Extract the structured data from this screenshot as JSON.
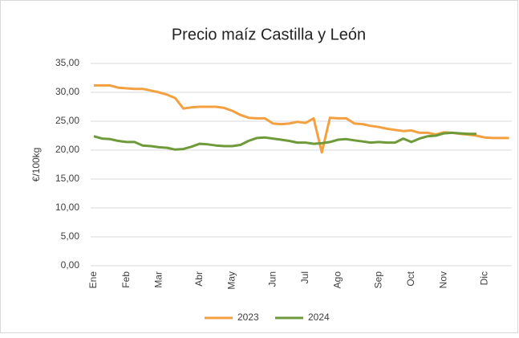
{
  "chart_data": {
    "type": "line",
    "title": "Precio maíz Castilla y León",
    "y_label": "€/100kg",
    "categories": [
      "Ene",
      null,
      null,
      null,
      "Feb",
      null,
      null,
      null,
      "Mar",
      null,
      null,
      null,
      null,
      "Abr",
      null,
      null,
      null,
      "May",
      null,
      null,
      null,
      null,
      "Jun",
      null,
      null,
      null,
      "Jul",
      null,
      null,
      null,
      "Ago",
      null,
      null,
      null,
      null,
      "Sep",
      null,
      null,
      null,
      "Oct",
      null,
      null,
      null,
      "Nov",
      null,
      null,
      null,
      null,
      "Dic",
      null,
      null,
      null
    ],
    "series": [
      {
        "name": "2023",
        "color": "#f4a040",
        "values": [
          31.2,
          31.2,
          31.2,
          30.8,
          30.7,
          30.6,
          30.6,
          30.3,
          30.0,
          29.6,
          29.0,
          27.2,
          27.4,
          27.5,
          27.5,
          27.5,
          27.3,
          26.8,
          26.1,
          25.6,
          25.5,
          25.5,
          24.6,
          24.5,
          24.6,
          24.9,
          24.7,
          25.5,
          19.6,
          25.6,
          25.5,
          25.5,
          24.6,
          24.5,
          24.2,
          24.0,
          23.7,
          23.5,
          23.3,
          23.4,
          23.0,
          23.0,
          22.7,
          23.1,
          23.0,
          22.8,
          22.7,
          22.5,
          22.2,
          22.1,
          22.1,
          22.1
        ]
      },
      {
        "name": "2024",
        "color": "#6e9a3a",
        "values": [
          22.4,
          22.0,
          21.9,
          21.6,
          21.4,
          21.4,
          20.8,
          20.7,
          20.5,
          20.4,
          20.1,
          20.2,
          20.6,
          21.1,
          21.0,
          20.8,
          20.7,
          20.7,
          20.9,
          21.6,
          22.1,
          22.2,
          22.0,
          21.8,
          21.6,
          21.3,
          21.3,
          21.1,
          21.2,
          21.4,
          21.8,
          21.9,
          21.7,
          21.5,
          21.3,
          21.4,
          21.3,
          21.3,
          22.0,
          21.4,
          22.0,
          22.4,
          22.5,
          22.9,
          23.0,
          22.9,
          22.8,
          22.8,
          null,
          null,
          null,
          null
        ]
      }
    ],
    "ylim": [
      0,
      35
    ],
    "yticks": [
      {
        "value": 0,
        "label": "0,00"
      },
      {
        "value": 5,
        "label": "5,00"
      },
      {
        "value": 10,
        "label": "10,00"
      },
      {
        "value": 15,
        "label": "15,00"
      },
      {
        "value": 20,
        "label": "20,00"
      },
      {
        "value": 25,
        "label": "25,00"
      },
      {
        "value": 30,
        "label": "30,00"
      },
      {
        "value": 35,
        "label": "35,00"
      }
    ],
    "grid": true,
    "legend": "bottom"
  }
}
